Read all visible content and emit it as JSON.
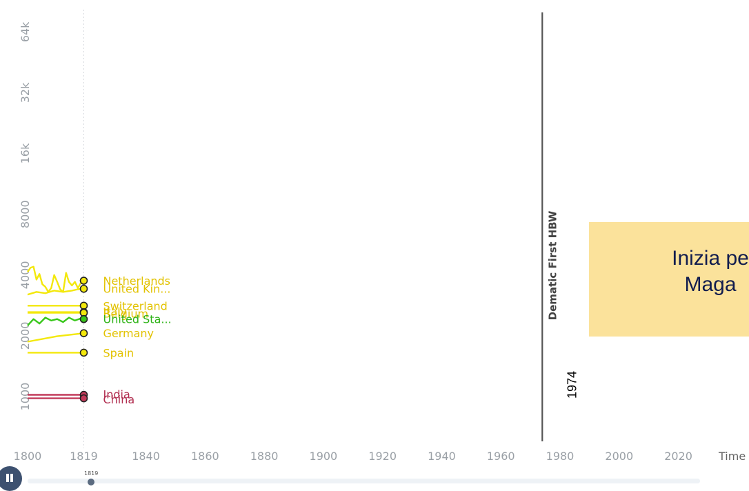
{
  "chart_data": {
    "type": "line",
    "xlabel": "Time",
    "ylabel": "",
    "xlim": [
      1800,
      2025
    ],
    "ylim": [
      600,
      80000
    ],
    "yscale": "log",
    "grid": false,
    "current_year": 1819,
    "x_ticks": [
      "1800",
      "1819",
      "1840",
      "1860",
      "1880",
      "1900",
      "1920",
      "1940",
      "1960",
      "1980",
      "2000",
      "2020"
    ],
    "y_ticks": [
      {
        "label": "1000",
        "value": 1000
      },
      {
        "label": "2000",
        "value": 2000
      },
      {
        "label": "4000",
        "value": 4000
      },
      {
        "label": "8000",
        "value": 8000
      },
      {
        "label": "16k",
        "value": 16000
      },
      {
        "label": "32k",
        "value": 32000
      },
      {
        "label": "64k",
        "value": 64000
      }
    ],
    "series": [
      {
        "name": "Netherlands",
        "color": "#f3e80c",
        "label_color": "#e2c200",
        "x": [
          1800,
          1801,
          1802,
          1803,
          1804,
          1805,
          1806,
          1807,
          1808,
          1809,
          1810,
          1811,
          1812,
          1813,
          1814,
          1815,
          1816,
          1817,
          1818,
          1819
        ],
        "y": [
          4150,
          4350,
          4400,
          3800,
          4050,
          3600,
          3500,
          3300,
          3450,
          4000,
          3700,
          3400,
          3300,
          4100,
          3700,
          3550,
          3700,
          3450,
          3650,
          3750
        ]
      },
      {
        "name": "United Kin...",
        "color": "#f3e80c",
        "label_color": "#e2c200",
        "x": [
          1800,
          1803,
          1806,
          1809,
          1812,
          1815,
          1817,
          1819
        ],
        "y": [
          3200,
          3300,
          3250,
          3350,
          3300,
          3350,
          3400,
          3420
        ]
      },
      {
        "name": "Switzerland",
        "color": "#f3e80c",
        "label_color": "#e2c200",
        "x": [
          1800,
          1819
        ],
        "y": [
          2820,
          2820
        ]
      },
      {
        "name": "Italy",
        "color": "#f3e80c",
        "label_color": "#e2c200",
        "x": [
          1800,
          1819
        ],
        "y": [
          2620,
          2620
        ]
      },
      {
        "name": "Belgium",
        "color": "#f3e80c",
        "label_color": "#e2c200",
        "x": [
          1800,
          1819
        ],
        "y": [
          2600,
          2600
        ]
      },
      {
        "name": "United Sta...",
        "color": "#38c71b",
        "label_color": "#2db316",
        "x": [
          1800,
          1802,
          1804,
          1806,
          1808,
          1810,
          1812,
          1814,
          1816,
          1818,
          1819
        ],
        "y": [
          2250,
          2420,
          2300,
          2460,
          2380,
          2420,
          2340,
          2460,
          2380,
          2440,
          2420
        ]
      },
      {
        "name": "Germany",
        "color": "#f3e80c",
        "label_color": "#e2c200",
        "x": [
          1800,
          1810,
          1819
        ],
        "y": [
          1870,
          1990,
          2060
        ]
      },
      {
        "name": "Spain",
        "color": "#f3e80c",
        "label_color": "#e2c200",
        "x": [
          1800,
          1819
        ],
        "y": [
          1650,
          1650
        ]
      },
      {
        "name": "India",
        "color": "#c23a5a",
        "label_color": "#b12e50",
        "x": [
          1800,
          1819
        ],
        "y": [
          1020,
          1020
        ]
      },
      {
        "name": "China",
        "color": "#c23a5a",
        "label_color": "#b12e50",
        "x": [
          1800,
          1819
        ],
        "y": [
          980,
          980
        ]
      }
    ],
    "point_labels": [
      {
        "text": "Netherlands",
        "y": 3750,
        "color": "#e2c200"
      },
      {
        "text": "United Kin...",
        "y": 3420,
        "color": "#e2c200"
      },
      {
        "text": "Switzerland",
        "y": 2820,
        "color": "#e2c200"
      },
      {
        "text": "Italy",
        "y": 2640,
        "color": "#e2c200"
      },
      {
        "text": "Belgium",
        "y": 2580,
        "color": "#e2c200"
      },
      {
        "text": "United Sta...",
        "y": 2420,
        "color": "#2db316"
      },
      {
        "text": "Germany",
        "y": 2060,
        "color": "#e2c200"
      },
      {
        "text": "Spain",
        "y": 1650,
        "color": "#e2c200"
      },
      {
        "text": "India",
        "y": 1030,
        "color": "#b12e50"
      },
      {
        "text": "China",
        "y": 970,
        "color": "#b12e50"
      }
    ],
    "annotations": [
      {
        "text": "Dematic First HBW",
        "x": 1974,
        "year_label": "1974"
      }
    ]
  },
  "callout": {
    "lines": [
      "Inizia pe",
      "Maga"
    ]
  },
  "timeline": {
    "handle_label": "1819",
    "button": "pause"
  }
}
